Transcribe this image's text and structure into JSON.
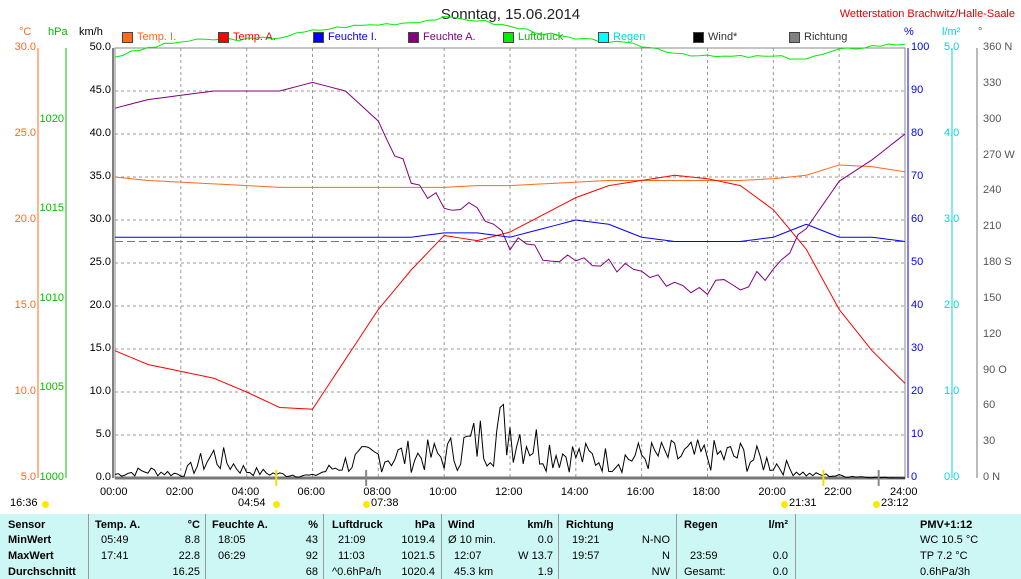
{
  "header": {
    "title": "Sonntag, 15.06.2014",
    "station": "Wetterstation Brachwitz/Halle-Saale",
    "units_left": [
      "°C",
      "hPa",
      "km/h"
    ],
    "units_right": [
      "%",
      "l/m²",
      "°"
    ]
  },
  "legend": [
    {
      "label": "Temp. I.",
      "color": "#ff6a20"
    },
    {
      "label": "Temp. A.",
      "color": "#ff0000"
    },
    {
      "label": "Feuchte I.",
      "color": "#0000ff"
    },
    {
      "label": "Feuchte A.",
      "color": "#800080"
    },
    {
      "label": "Luftdruck",
      "color": "#00ee00"
    },
    {
      "label": "Regen",
      "color": "#00ffff"
    },
    {
      "label": "Wind*",
      "color": "#000000"
    },
    {
      "label": "Richtung",
      "color": "#808080"
    }
  ],
  "chart_data": {
    "type": "line",
    "title": "Sonntag, 15.06.2014",
    "x_ticks": [
      "00:00",
      "02:00",
      "04:00",
      "06:00",
      "08:00",
      "10:00",
      "12:00",
      "14:00",
      "16:00",
      "18:00",
      "20:00",
      "22:00",
      "24:00"
    ],
    "x_hours": [
      0,
      1,
      2,
      3,
      4,
      5,
      6,
      7,
      8,
      9,
      10,
      11,
      12,
      13,
      14,
      15,
      16,
      17,
      18,
      19,
      20,
      21,
      22,
      23,
      24
    ],
    "axes": {
      "temp_c": {
        "ticks": [
          "30.0",
          "25.0",
          "20.0",
          "15.0",
          "10.0",
          "5.0"
        ],
        "range": [
          5,
          30
        ],
        "color": "#ff6a20"
      },
      "pressure_hpa": {
        "ticks": [
          "1020",
          "1015",
          "1010",
          "1005",
          "1000"
        ],
        "range": [
          1000,
          1020
        ],
        "color": "#00c000"
      },
      "wind_kmh": {
        "ticks": [
          "50.0",
          "45.0",
          "40.0",
          "35.0",
          "30.0",
          "25.0",
          "20.0",
          "15.0",
          "10.0",
          "5.0",
          "0.0"
        ],
        "range": [
          0,
          50
        ],
        "color": "#000000"
      },
      "humidity_pct": {
        "ticks": [
          "100",
          "90",
          "80",
          "70",
          "60",
          "50",
          "40",
          "30",
          "20",
          "10",
          "0"
        ],
        "range": [
          0,
          100
        ],
        "color": "#0000ff"
      },
      "rain_lm2": {
        "ticks": [
          "5.0",
          "4.0",
          "3.0",
          "2.0",
          "1.0",
          "0.0"
        ],
        "range": [
          0,
          5
        ],
        "color": "#00d8d8"
      },
      "direction_deg": {
        "ticks": [
          "360 N",
          "330",
          "300",
          "270 W",
          "240",
          "210",
          "180 S",
          "150",
          "120",
          "90 O",
          "60",
          "30",
          "0 N"
        ],
        "range": [
          0,
          360
        ],
        "color": "#606060"
      }
    },
    "series": [
      {
        "name": "Temp. I.",
        "axis": "temp_c",
        "color": "#ff6a20",
        "values": [
          22.5,
          22.3,
          22.2,
          22.1,
          22.0,
          21.9,
          21.9,
          21.9,
          21.9,
          21.9,
          21.9,
          22.0,
          22.0,
          22.1,
          22.2,
          22.3,
          22.3,
          22.3,
          22.3,
          22.3,
          22.4,
          22.6,
          23.2,
          23.1,
          22.8
        ]
      },
      {
        "name": "Temp. A.",
        "axis": "temp_c",
        "color": "#ff0000",
        "values": [
          12.4,
          11.6,
          11.2,
          10.8,
          10.0,
          9.1,
          9.0,
          11.9,
          14.8,
          17.1,
          19.1,
          18.8,
          19.3,
          20.3,
          21.3,
          22.0,
          22.3,
          22.6,
          22.4,
          22.0,
          20.6,
          18.3,
          14.8,
          12.4,
          10.5
        ]
      },
      {
        "name": "Feuchte I.",
        "axis": "humidity_pct",
        "color": "#0000ff",
        "values": [
          56,
          56,
          56,
          56,
          56,
          56,
          56,
          56,
          56,
          56,
          57,
          57,
          56,
          58,
          60,
          59,
          56,
          55,
          55,
          55,
          56,
          59,
          56,
          56,
          55
        ]
      },
      {
        "name": "Feuchte A.",
        "axis": "humidity_pct",
        "color": "#800080",
        "values": [
          86,
          88,
          89,
          90,
          90,
          90,
          92,
          90,
          83,
          69,
          63,
          62,
          55,
          52,
          50,
          50,
          48,
          46,
          44,
          45,
          48,
          58,
          69,
          74,
          80
        ]
      },
      {
        "name": "Luftdruck",
        "axis": "pressure_hpa",
        "color": "#00ee00",
        "values": [
          1019.6,
          1020.0,
          1020.3,
          1020.4,
          1020.4,
          1020.5,
          1020.8,
          1021.0,
          1021.1,
          1021.2,
          1021.4,
          1021.3,
          1021.0,
          1020.7,
          1020.4,
          1020.3,
          1020.1,
          1019.8,
          1019.6,
          1019.6,
          1019.6,
          1019.5,
          1019.9,
          1020.1,
          1020.2
        ]
      },
      {
        "name": "Wind*",
        "axis": "wind_kmh",
        "color": "#000000",
        "values": [
          0.5,
          1.0,
          0.5,
          3.0,
          1.0,
          0.5,
          0.3,
          2.0,
          3.0,
          3.0,
          3.0,
          5.0,
          7.0,
          4.0,
          3.0,
          2.5,
          3.0,
          3.0,
          3.0,
          3.0,
          2.0,
          0.5,
          0.3,
          0.1,
          0.0
        ]
      }
    ],
    "reference_line": {
      "axis": "wind_kmh",
      "value": 27.5
    },
    "sun_markers": [
      {
        "label": "16:36",
        "hour": null
      },
      {
        "label": "04:54",
        "hour": 4.9
      },
      {
        "label": "07:38",
        "hour": 7.63
      },
      {
        "label": "21:31",
        "hour": 21.52
      },
      {
        "label": "23:12",
        "hour": 23.2
      }
    ]
  },
  "table": {
    "sensor": [
      "Sensor",
      "MinWert",
      "MaxWert",
      "Durchschnitt"
    ],
    "groups": [
      {
        "title": "Temp. A.",
        "unit": "°C",
        "rows": [
          [
            "05:49",
            "8.8"
          ],
          [
            "17:41",
            "22.8"
          ],
          [
            "",
            "16.25"
          ]
        ]
      },
      {
        "title": "Feuchte A.",
        "unit": "%",
        "rows": [
          [
            "18:05",
            "43"
          ],
          [
            "06:29",
            "92"
          ],
          [
            "",
            "68"
          ]
        ]
      },
      {
        "title": "Luftdruck",
        "unit": "hPa",
        "rows": [
          [
            "21:09",
            "1019.4"
          ],
          [
            "11:03",
            "1021.5"
          ],
          [
            "^0.6hPa/h",
            "1020.4"
          ]
        ]
      },
      {
        "title": "Wind",
        "unit": "km/h",
        "rows": [
          [
            "Ø 10 min.",
            "0.0"
          ],
          [
            "12:07",
            "W 13.7"
          ],
          [
            "45.3 km",
            "1.9"
          ]
        ]
      },
      {
        "title": "Richtung",
        "unit": "",
        "rows": [
          [
            "19:21",
            "N-NO"
          ],
          [
            "19:57",
            "N"
          ],
          [
            "",
            "NW"
          ]
        ]
      },
      {
        "title": "Regen",
        "unit": "l/m²",
        "rows": [
          [
            "",
            ""
          ],
          [
            "23:59",
            "0.0"
          ],
          [
            "Gesamt:",
            "0.0"
          ]
        ]
      }
    ],
    "pmv": {
      "title": "PMV+1:12",
      "lines": [
        "WC 10.5 °C",
        "TP 7.2 °C",
        "0.6hPa/3h"
      ]
    }
  }
}
